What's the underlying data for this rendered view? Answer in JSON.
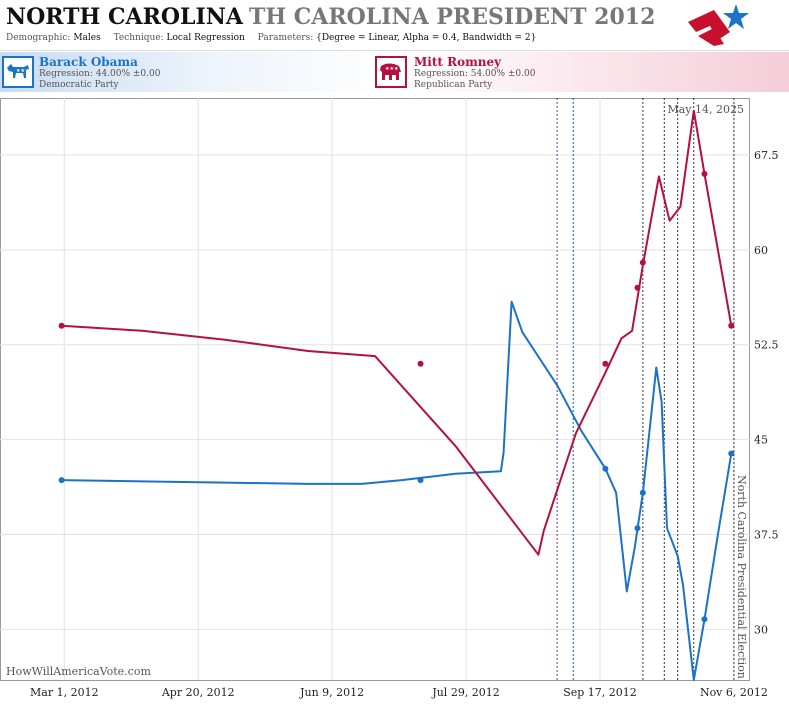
{
  "header": {
    "state": "NORTH CAROLINA",
    "race": "TH CAROLINA PRESIDENT 2012",
    "params": [
      {
        "key": "Demographic:",
        "value": "Males"
      },
      {
        "key": "Technique:",
        "value": "Local Regression"
      },
      {
        "key": "Parameters:",
        "value": "{Degree = Linear, Alpha = 0.4, Bandwidth = 2}"
      }
    ]
  },
  "candidates": {
    "dem": {
      "name": "Barack Obama",
      "regression": "Regression: 44.00% ±0.00",
      "party": "Democratic Party",
      "color": "#1a73c9",
      "icon": "donkey-icon"
    },
    "rep": {
      "name": "Mitt Romney",
      "regression": "Regression: 54.00% ±0.00",
      "party": "Republican Party",
      "color": "#b5103f",
      "icon": "elephant-icon"
    }
  },
  "chart_data": {
    "type": "line",
    "x_ticks": [
      "Mar 1, 2012",
      "Apr 20, 2012",
      "Jun 9, 2012",
      "Jul 29, 2012",
      "Sep 17, 2012",
      "Nov 6, 2012"
    ],
    "y_ticks": [
      "30",
      "37.5",
      "45",
      "52.5",
      "60",
      "67.5"
    ],
    "ylim": [
      26,
      72
    ],
    "xlim": [
      "2012-02-06",
      "2012-11-12"
    ],
    "grid": true,
    "date_label": "May 14, 2025",
    "election_label": "North Carolina Presidential Election",
    "watermark": "HowWillAmericaVote.com",
    "event_lines": [
      {
        "date": "2012-09-01",
        "color": "#7b2d8e"
      },
      {
        "date": "2012-09-07",
        "color": "#1a5a9a"
      },
      {
        "date": "2012-10-03",
        "color": "#333333"
      },
      {
        "date": "2012-10-11",
        "color": "#333333"
      },
      {
        "date": "2012-10-16",
        "color": "#333333"
      },
      {
        "date": "2012-10-22",
        "color": "#333333"
      },
      {
        "date": "2012-11-06",
        "color": "#333333"
      }
    ],
    "series": [
      {
        "name": "Barack Obama",
        "color": "#1a73c9",
        "line": [
          [
            "2012-02-29",
            41.8
          ],
          [
            "2012-03-30",
            41.7
          ],
          [
            "2012-04-30",
            41.6
          ],
          [
            "2012-05-31",
            41.5
          ],
          [
            "2012-06-20",
            41.5
          ],
          [
            "2012-07-05",
            41.8
          ],
          [
            "2012-07-25",
            42.3
          ],
          [
            "2012-08-11",
            42.5
          ],
          [
            "2012-08-12",
            44.0
          ],
          [
            "2012-08-15",
            55.9
          ],
          [
            "2012-08-19",
            53.5
          ],
          [
            "2012-09-01",
            49.3
          ],
          [
            "2012-09-10",
            45.7
          ],
          [
            "2012-09-19",
            42.7
          ],
          [
            "2012-09-23",
            40.8
          ],
          [
            "2012-09-27",
            33.0
          ],
          [
            "2012-09-30",
            36.5
          ],
          [
            "2012-10-03",
            40.8
          ],
          [
            "2012-10-08",
            50.7
          ],
          [
            "2012-10-10",
            48.0
          ],
          [
            "2012-10-12",
            38.0
          ],
          [
            "2012-10-16",
            35.8
          ],
          [
            "2012-10-18",
            33.5
          ],
          [
            "2012-10-22",
            26.0
          ],
          [
            "2012-10-26",
            30.8
          ],
          [
            "2012-10-31",
            37.5
          ],
          [
            "2012-11-05",
            43.9
          ]
        ],
        "points": [
          [
            "2012-02-29",
            41.8
          ],
          [
            "2012-07-12",
            41.8
          ],
          [
            "2012-09-19",
            42.7
          ],
          [
            "2012-10-01",
            38.0
          ],
          [
            "2012-10-03",
            40.8
          ],
          [
            "2012-10-26",
            30.8
          ],
          [
            "2012-11-05",
            43.9
          ]
        ]
      },
      {
        "name": "Mitt Romney",
        "color": "#b5103f",
        "line": [
          [
            "2012-02-29",
            54.0
          ],
          [
            "2012-03-30",
            53.6
          ],
          [
            "2012-04-30",
            52.9
          ],
          [
            "2012-05-31",
            52.0
          ],
          [
            "2012-06-25",
            51.6
          ],
          [
            "2012-07-25",
            44.5
          ],
          [
            "2012-08-25",
            35.9
          ],
          [
            "2012-08-27",
            37.8
          ],
          [
            "2012-09-08",
            45.5
          ],
          [
            "2012-09-19",
            50.3
          ],
          [
            "2012-09-25",
            53.0
          ],
          [
            "2012-09-29",
            53.6
          ],
          [
            "2012-10-03",
            58.8
          ],
          [
            "2012-10-09",
            65.8
          ],
          [
            "2012-10-13",
            62.3
          ],
          [
            "2012-10-17",
            63.4
          ],
          [
            "2012-10-22",
            71.0
          ],
          [
            "2012-10-26",
            66.0
          ],
          [
            "2012-11-05",
            54.0
          ]
        ],
        "points": [
          [
            "2012-02-29",
            54.0
          ],
          [
            "2012-07-12",
            51.0
          ],
          [
            "2012-09-19",
            51.0
          ],
          [
            "2012-10-01",
            57.0
          ],
          [
            "2012-10-03",
            59.0
          ],
          [
            "2012-10-26",
            66.0
          ],
          [
            "2012-11-05",
            54.0
          ]
        ]
      }
    ]
  }
}
